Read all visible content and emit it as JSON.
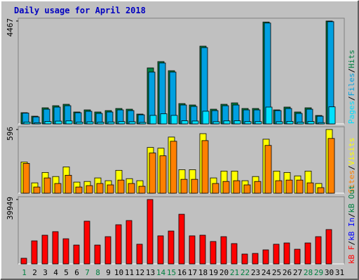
{
  "chart_data": [
    {
      "type": "bar",
      "title": "Daily usage for April 2018",
      "ylim": [
        0,
        4467
      ],
      "yticks": [
        4467
      ],
      "legend_separator": "/",
      "series": [
        {
          "name": "Hits",
          "color": "#008040",
          "values": [
            486,
            334,
            699,
            790,
            851,
            517,
            608,
            517,
            578,
            669,
            638,
            426,
            2431,
            2705,
            2310,
            882,
            821,
            3374,
            638,
            851,
            912,
            669,
            669,
            4420,
            608,
            730,
            517,
            699,
            365,
            4467,
            0
          ]
        },
        {
          "name": "Files",
          "color": "#00a0e0",
          "values": [
            470,
            304,
            638,
            730,
            790,
            486,
            547,
            456,
            517,
            608,
            578,
            395,
            2250,
            2645,
            2250,
            821,
            760,
            3314,
            578,
            790,
            821,
            608,
            608,
            4380,
            578,
            669,
            456,
            638,
            334,
            4440,
            0
          ]
        },
        {
          "name": "Pages",
          "color": "#00e0ff",
          "values": [
            80,
            50,
            105,
            120,
            130,
            80,
            90,
            75,
            85,
            100,
            95,
            65,
            370,
            440,
            370,
            135,
            125,
            550,
            95,
            130,
            135,
            100,
            100,
            730,
            95,
            110,
            75,
            105,
            55,
            740,
            0
          ]
        }
      ]
    },
    {
      "type": "bar",
      "ylim": [
        0,
        596
      ],
      "yticks": [
        596
      ],
      "legend_separator": "/",
      "series": [
        {
          "name": "Visits",
          "color": "#ffff00",
          "values": [
            292,
            97,
            194,
            156,
            246,
            104,
            110,
            143,
            117,
            214,
            136,
            117,
            428,
            421,
            525,
            220,
            220,
            557,
            143,
            207,
            207,
            117,
            156,
            505,
            207,
            194,
            162,
            207,
            91,
            596,
            0
          ]
        },
        {
          "name": "Sites",
          "color": "#ff8000",
          "values": [
            279,
            58,
            143,
            91,
            168,
            58,
            71,
            91,
            78,
            123,
            91,
            65,
            376,
            350,
            486,
            130,
            130,
            492,
            91,
            110,
            117,
            78,
            110,
            447,
            117,
            123,
            123,
            97,
            52,
            512,
            0
          ]
        }
      ]
    },
    {
      "type": "bar",
      "ylim": [
        0,
        39949
      ],
      "yticks": [
        39949
      ],
      "legend_separator": "/",
      "categories": [
        "1",
        "2",
        "3",
        "4",
        "5",
        "6",
        "7",
        "8",
        "9",
        "10",
        "11",
        "12",
        "13",
        "14",
        "15",
        "16",
        "17",
        "18",
        "19",
        "20",
        "21",
        "22",
        "23",
        "24",
        "25",
        "26",
        "27",
        "28",
        "29",
        "30",
        "31"
      ],
      "category_colors": [
        "#008040",
        "#000000",
        "#000000",
        "#000000",
        "#000000",
        "#000000",
        "#008040",
        "#008040",
        "#000000",
        "#000000",
        "#000000",
        "#000000",
        "#000000",
        "#008040",
        "#008040",
        "#000000",
        "#000000",
        "#000000",
        "#000000",
        "#000000",
        "#008040",
        "#008040",
        "#000000",
        "#000000",
        "#000000",
        "#000000",
        "#000000",
        "#008040",
        "#008040",
        "#000000",
        "#000000"
      ],
      "series": [
        {
          "name": "kB F",
          "color": "#ff0000",
          "values": [
            3500,
            14300,
            17800,
            20000,
            15600,
            11700,
            26500,
            11700,
            16900,
            24300,
            26900,
            12200,
            39949,
            17400,
            20400,
            30800,
            17400,
            17800,
            13900,
            16900,
            12600,
            6100,
            6500,
            8700,
            12200,
            13000,
            9100,
            13000,
            16900,
            21300,
            0
          ]
        }
      ],
      "legend_extra": [
        {
          "name": "kB In",
          "color": "#0000ff"
        },
        {
          "name": "kB Out",
          "color": "#008040"
        }
      ]
    }
  ]
}
